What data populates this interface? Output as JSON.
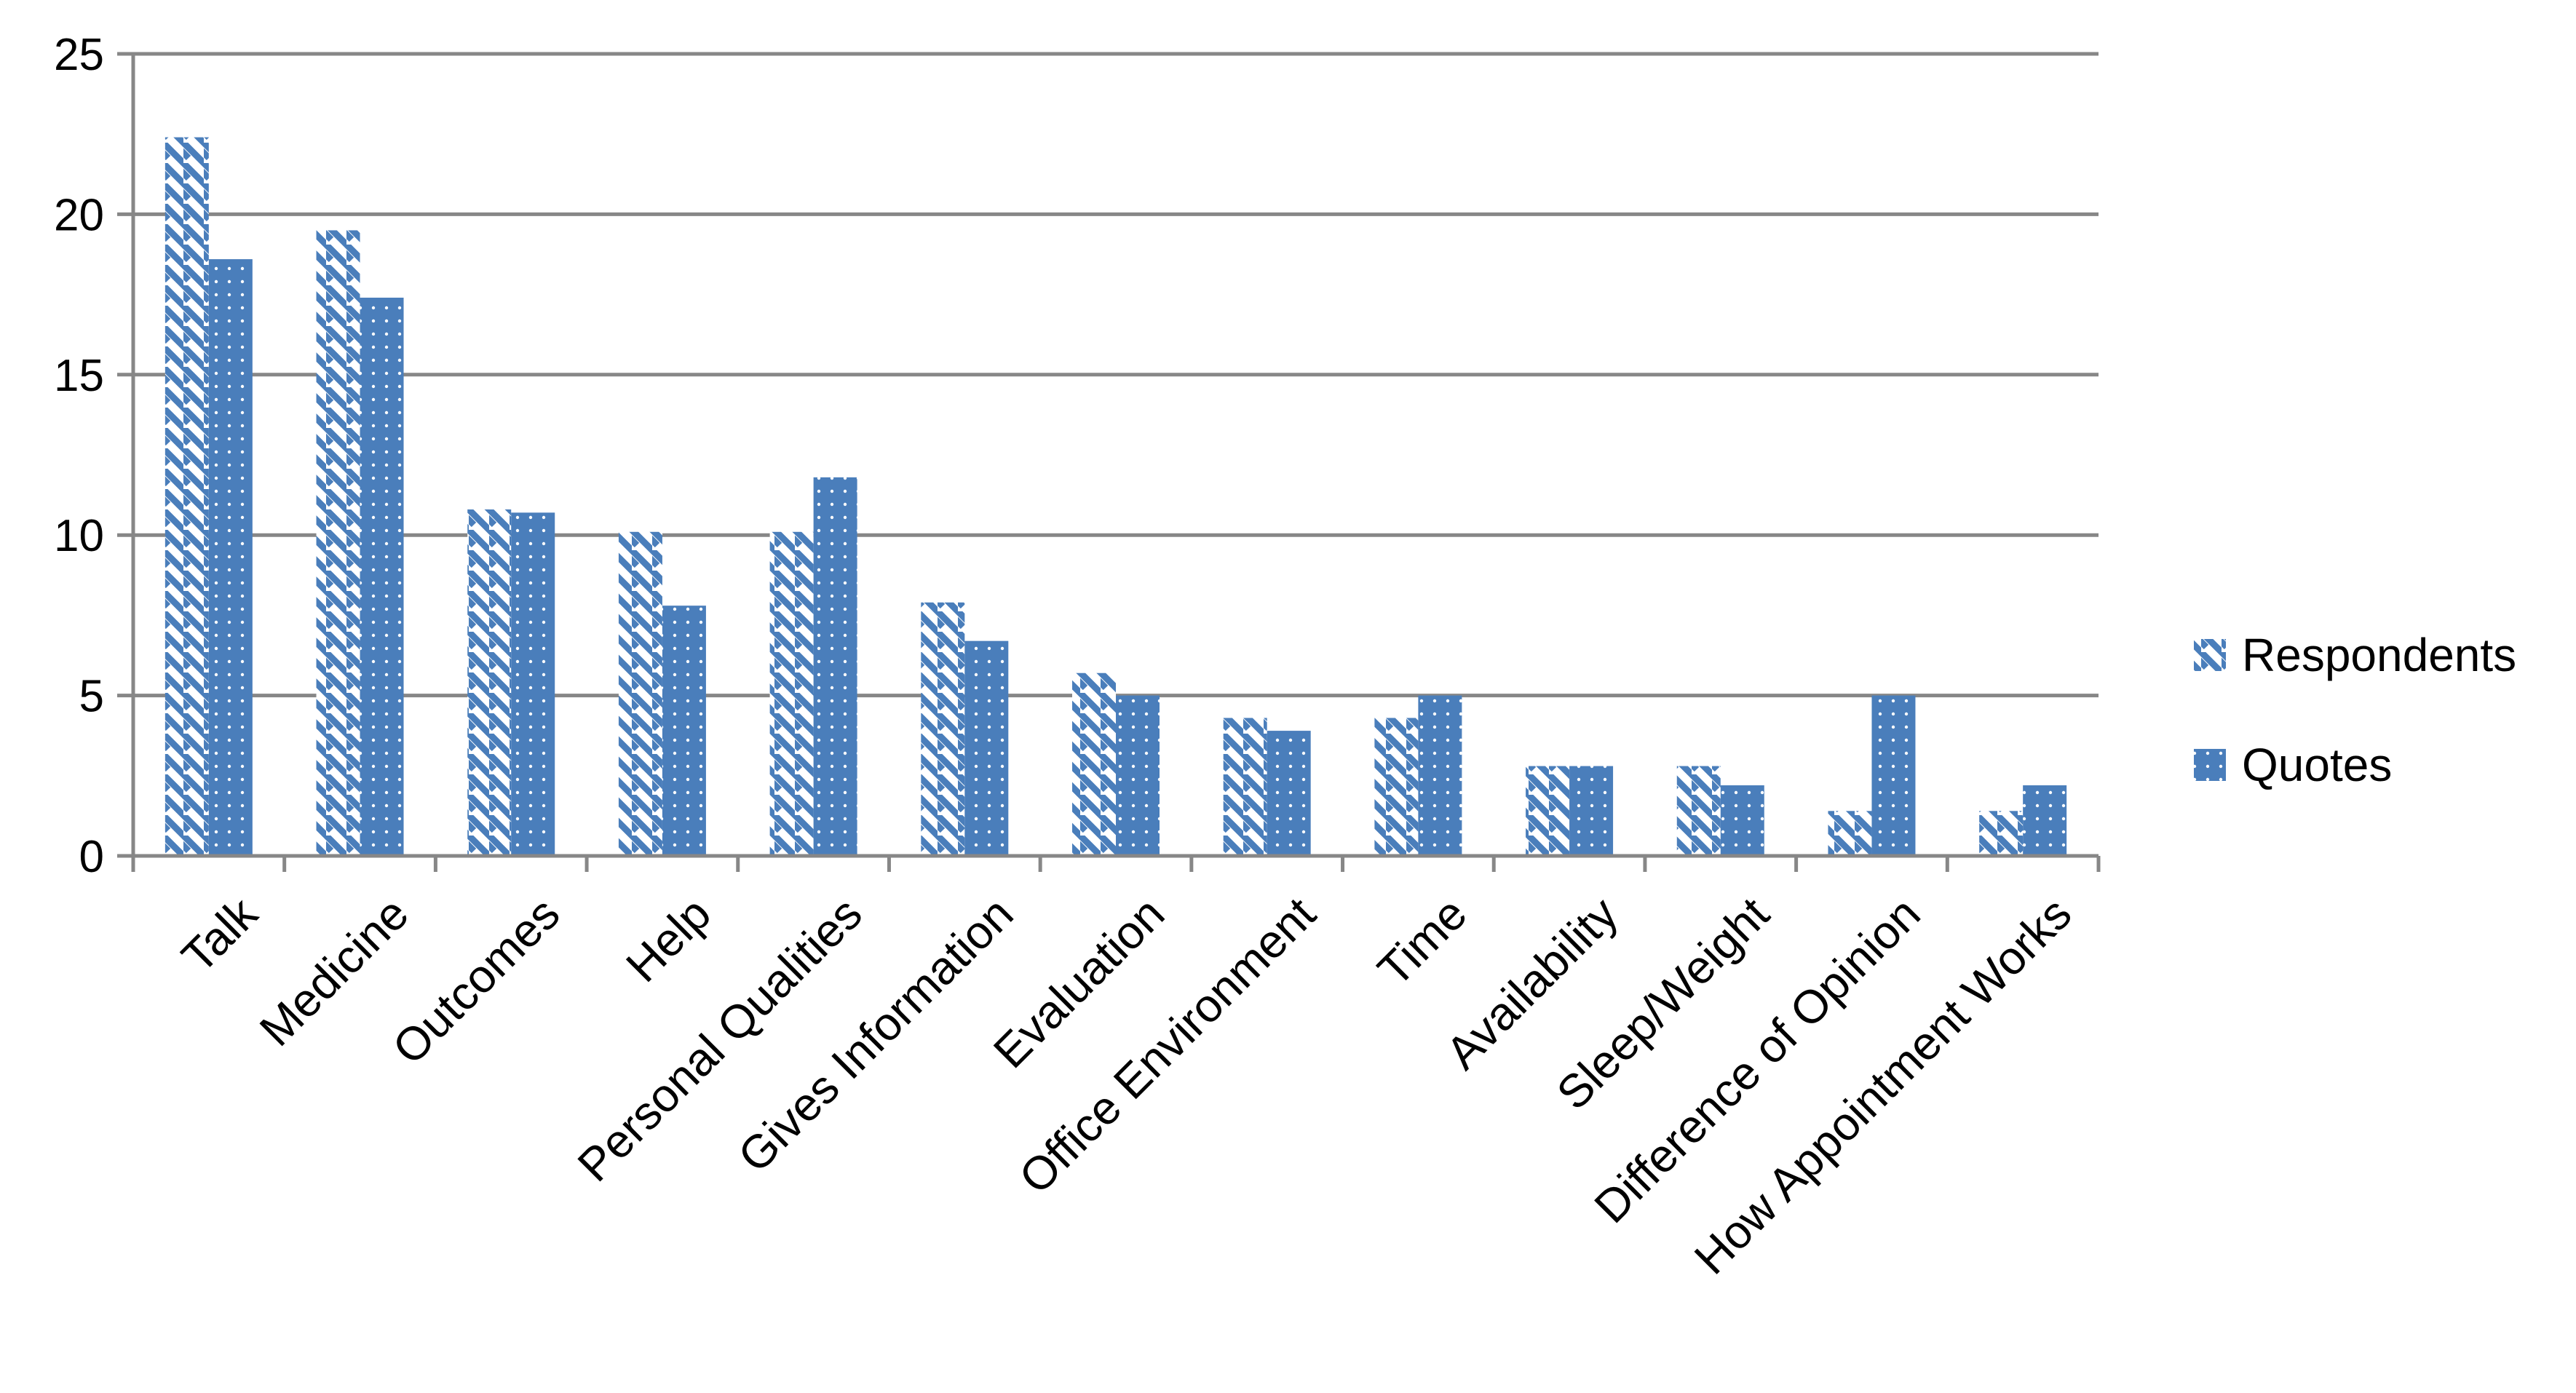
{
  "chart_data": {
    "type": "bar",
    "title": "",
    "xlabel": "",
    "ylabel": "",
    "ylim": [
      0,
      25
    ],
    "yticks": [
      0,
      5,
      10,
      15,
      20,
      25
    ],
    "grid": true,
    "legend_position": "right",
    "categories": [
      "Talk",
      "Medicine",
      "Outcomes",
      "Help",
      "Personal Qualities",
      "Gives Information",
      "Evaluation",
      "Office Environment",
      "Time",
      "Availability",
      "Sleep/Weight",
      "Difference of Opinion",
      "How Appointment Works"
    ],
    "series": [
      {
        "name": "Respondents",
        "pattern": "diagonal-stripes",
        "color": "#4a7ebb",
        "values": [
          22.4,
          19.5,
          10.8,
          10.1,
          10.1,
          7.9,
          5.7,
          4.3,
          4.3,
          2.8,
          2.8,
          1.4,
          1.4
        ]
      },
      {
        "name": "Quotes",
        "pattern": "dotted",
        "color": "#4a7ebb",
        "values": [
          18.6,
          17.4,
          10.7,
          7.8,
          11.8,
          6.7,
          5.0,
          3.9,
          5.0,
          2.8,
          2.2,
          5.0,
          2.2
        ]
      }
    ],
    "colors": {
      "grid": "#878787",
      "axis": "#878787",
      "bar": "#4a7ebb"
    }
  }
}
